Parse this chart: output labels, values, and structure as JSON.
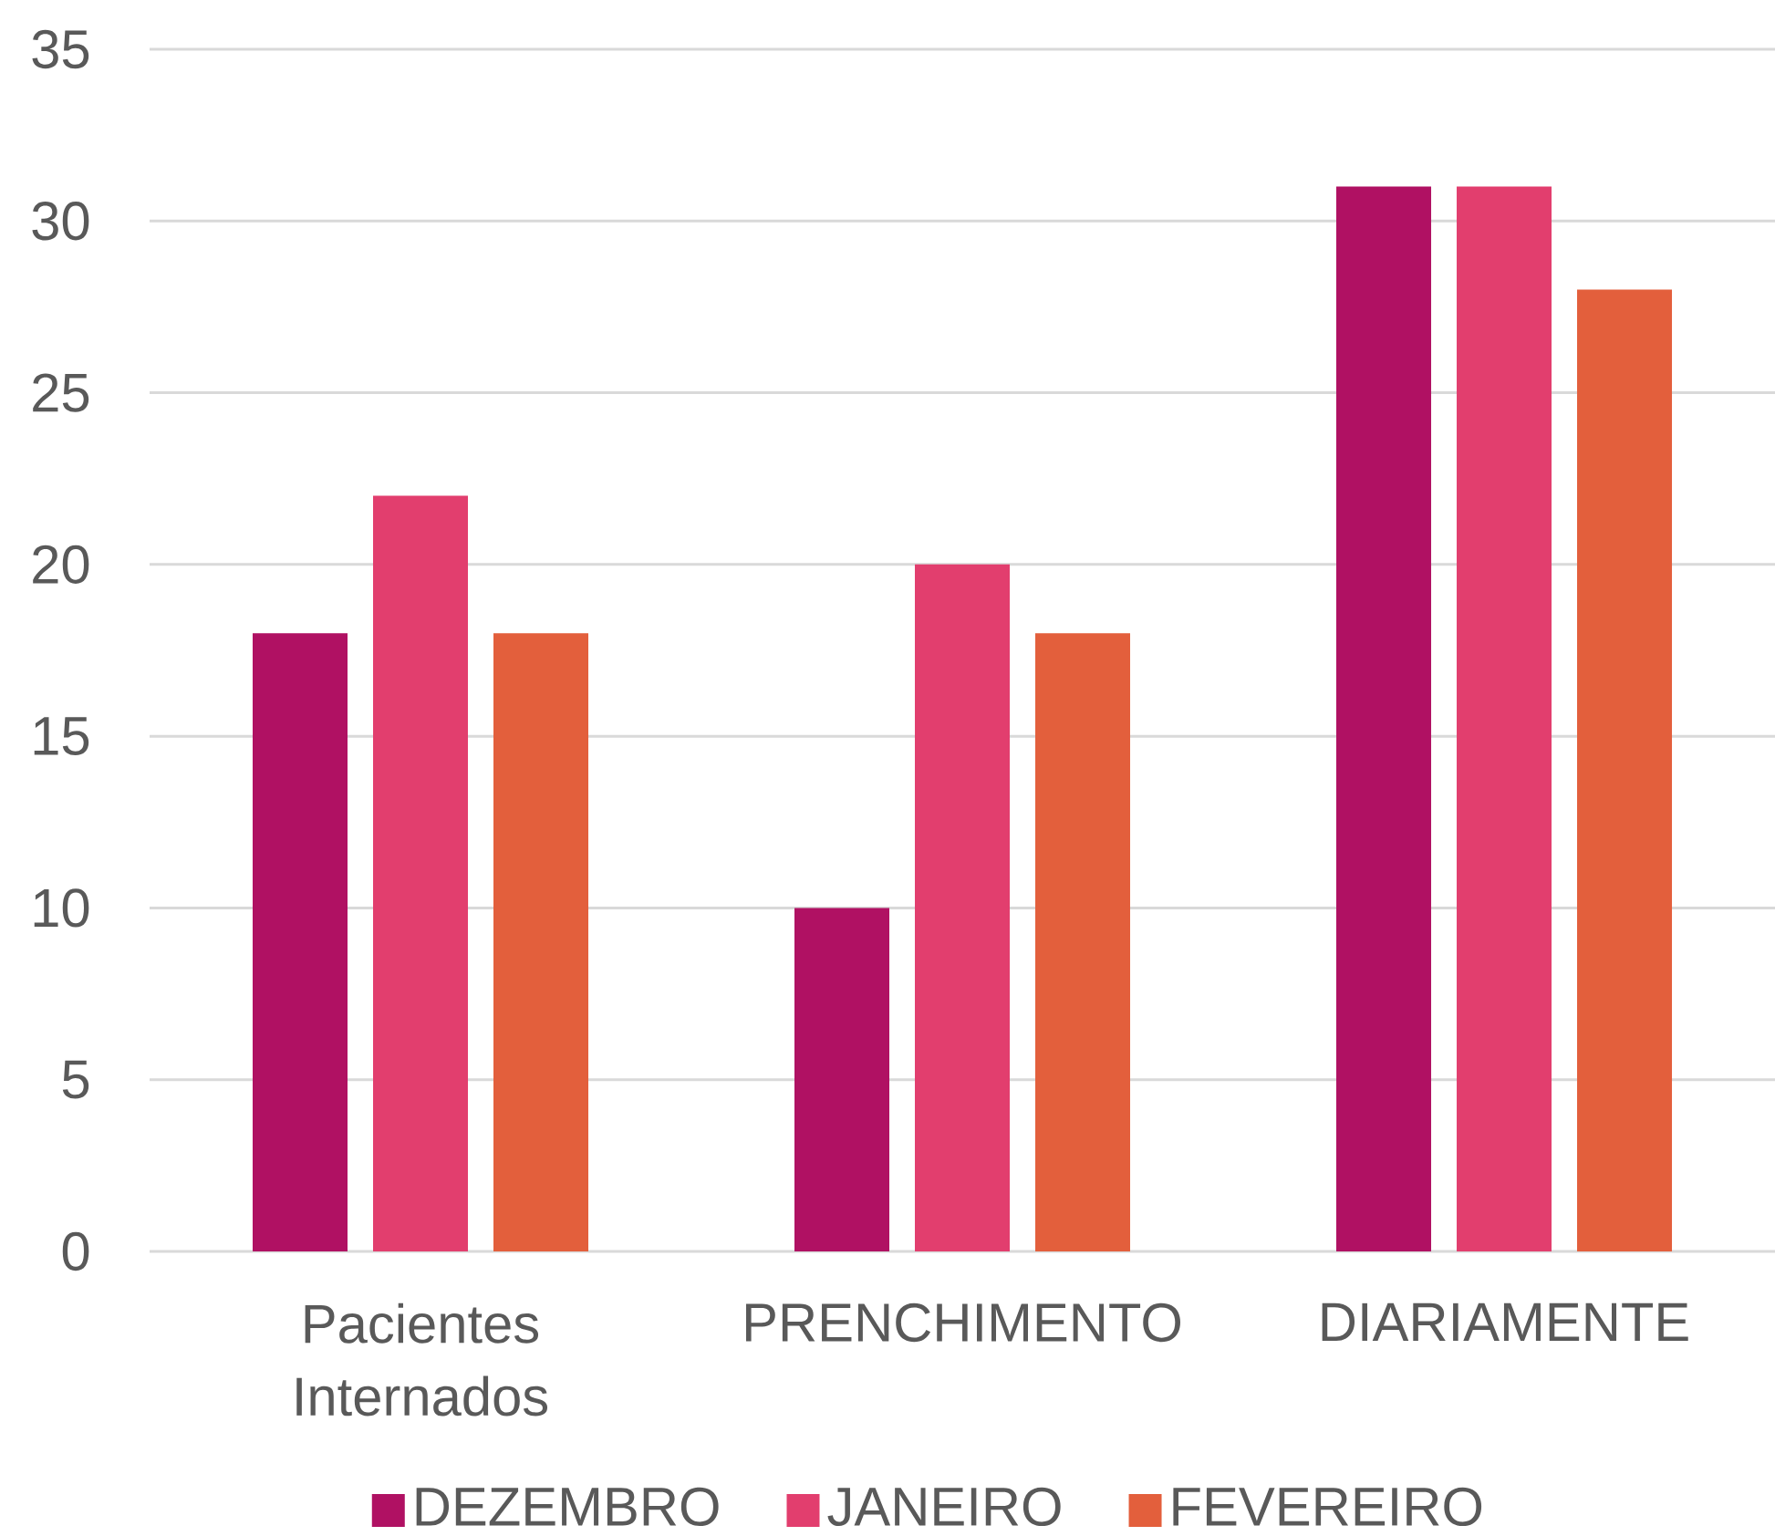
{
  "chart_data": {
    "type": "bar",
    "categories": [
      "Pacientes Internados",
      "PRENCHIMENTO",
      "DIARIAMENTE"
    ],
    "series": [
      {
        "name": "DEZEMBRO",
        "color": "#b01163",
        "values": [
          18,
          10,
          31
        ]
      },
      {
        "name": "JANEIRO",
        "color": "#e23e6e",
        "values": [
          22,
          20,
          31
        ]
      },
      {
        "name": "FEVEREIRO",
        "color": "#e35f3c",
        "values": [
          18,
          18,
          28
        ]
      }
    ],
    "ylim": [
      0,
      35
    ],
    "yticks": [
      0,
      5,
      10,
      15,
      20,
      25,
      30,
      35
    ],
    "grid": "y",
    "legend": "bottom"
  }
}
